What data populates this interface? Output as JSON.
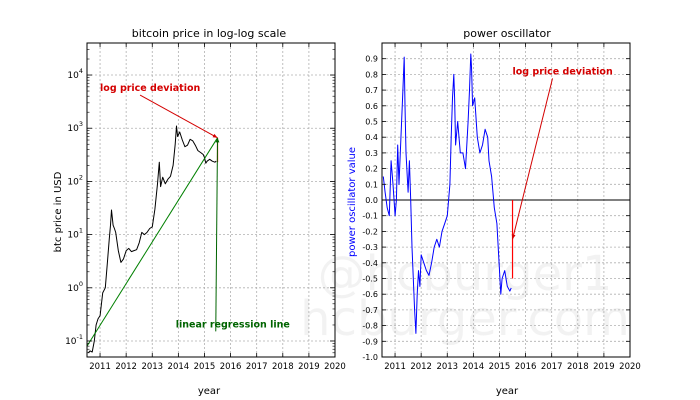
{
  "chart_data": [
    {
      "type": "line",
      "title": "bitcoin price in log-log scale",
      "xlabel": "year",
      "ylabel": "btc price in USD",
      "xlim": [
        2010.5,
        2020.0
      ],
      "yscale": "log",
      "ylim": [
        0.05,
        40000
      ],
      "grid": true,
      "x_ticks": [
        "2011",
        "2012",
        "2013",
        "2014",
        "2015",
        "2016",
        "2017",
        "2018",
        "2019",
        "2020"
      ],
      "y_ticks": [
        {
          "value": 0.1,
          "base": "10",
          "exp": "-1"
        },
        {
          "value": 1,
          "base": "10",
          "exp": "0"
        },
        {
          "value": 10,
          "base": "10",
          "exp": "1"
        },
        {
          "value": 100,
          "base": "10",
          "exp": "2"
        },
        {
          "value": 1000,
          "base": "10",
          "exp": "3"
        },
        {
          "value": 10000,
          "base": "10",
          "exp": "4"
        }
      ],
      "series": [
        {
          "color": "#000000",
          "points": [
            [
              2010.55,
              0.06
            ],
            [
              2010.62,
              0.065
            ],
            [
              2010.7,
              0.062
            ],
            [
              2010.78,
              0.1
            ],
            [
              2010.85,
              0.2
            ],
            [
              2010.92,
              0.26
            ],
            [
              2011.0,
              0.3
            ],
            [
              2011.1,
              0.8
            ],
            [
              2011.2,
              1.0
            ],
            [
              2011.28,
              3.0
            ],
            [
              2011.35,
              8.0
            ],
            [
              2011.4,
              15.0
            ],
            [
              2011.44,
              29.0
            ],
            [
              2011.5,
              15.0
            ],
            [
              2011.55,
              13.0
            ],
            [
              2011.6,
              11.0
            ],
            [
              2011.7,
              5.0
            ],
            [
              2011.8,
              3.0
            ],
            [
              2011.9,
              3.5
            ],
            [
              2012.0,
              5.0
            ],
            [
              2012.1,
              5.5
            ],
            [
              2012.2,
              4.8
            ],
            [
              2012.3,
              5.0
            ],
            [
              2012.4,
              5.2
            ],
            [
              2012.5,
              7.0
            ],
            [
              2012.6,
              11.0
            ],
            [
              2012.7,
              10.0
            ],
            [
              2012.8,
              11.0
            ],
            [
              2012.9,
              13.0
            ],
            [
              2013.0,
              14.0
            ],
            [
              2013.1,
              30.0
            ],
            [
              2013.2,
              90.0
            ],
            [
              2013.27,
              230.0
            ],
            [
              2013.32,
              80.0
            ],
            [
              2013.4,
              120.0
            ],
            [
              2013.5,
              90.0
            ],
            [
              2013.6,
              110.0
            ],
            [
              2013.7,
              125.0
            ],
            [
              2013.8,
              200.0
            ],
            [
              2013.88,
              500.0
            ],
            [
              2013.93,
              1100.0
            ],
            [
              2013.97,
              700.0
            ],
            [
              2014.05,
              850.0
            ],
            [
              2014.15,
              600.0
            ],
            [
              2014.25,
              450.0
            ],
            [
              2014.35,
              480.0
            ],
            [
              2014.45,
              620.0
            ],
            [
              2014.55,
              580.0
            ],
            [
              2014.65,
              480.0
            ],
            [
              2014.75,
              380.0
            ],
            [
              2014.85,
              350.0
            ],
            [
              2014.95,
              320.0
            ],
            [
              2015.0,
              280.0
            ],
            [
              2015.05,
              220.0
            ],
            [
              2015.1,
              240.0
            ],
            [
              2015.2,
              260.0
            ],
            [
              2015.3,
              240.0
            ],
            [
              2015.4,
              230.0
            ],
            [
              2015.45,
              240.0
            ]
          ]
        },
        {
          "color": "#008000",
          "points": [
            [
              2010.5,
              0.08
            ],
            [
              2015.5,
              660
            ]
          ]
        }
      ],
      "annotations": [
        {
          "text": "log price deviation",
          "color": "#d40000",
          "x": 2011.0,
          "y": 5000
        },
        {
          "text": "linear regression line",
          "color": "#006400",
          "x": 2013.9,
          "y": 0.18
        }
      ],
      "deviation": {
        "x": 2015.5,
        "y_from": 230,
        "y_to": 660,
        "color": "#ff0000"
      }
    },
    {
      "type": "line",
      "title": "power oscillator",
      "xlabel": "year",
      "ylabel": "power oscillator value",
      "ylabel_color": "#0000ff",
      "xlim": [
        2010.5,
        2020.0
      ],
      "ylim": [
        -1.0,
        1.0
      ],
      "grid": true,
      "x_ticks": [
        "2011",
        "2012",
        "2013",
        "2014",
        "2015",
        "2016",
        "2017",
        "2018",
        "2019",
        "2020"
      ],
      "y_ticks": [
        "-1.0",
        "-0.9",
        "-0.8",
        "-0.7",
        "-0.6",
        "-0.5",
        "-0.4",
        "-0.3",
        "-0.2",
        "-0.1",
        "0.0",
        "0.1",
        "0.2",
        "0.3",
        "0.4",
        "0.5",
        "0.6",
        "0.7",
        "0.8",
        "0.9"
      ],
      "zero_line": 0.0,
      "series": [
        {
          "color": "#0000ff",
          "points": [
            [
              2010.55,
              0.15
            ],
            [
              2010.62,
              0.05
            ],
            [
              2010.7,
              -0.05
            ],
            [
              2010.78,
              -0.1
            ],
            [
              2010.85,
              0.25
            ],
            [
              2010.92,
              0.1
            ],
            [
              2011.0,
              -0.1
            ],
            [
              2011.05,
              0.0
            ],
            [
              2011.1,
              0.35
            ],
            [
              2011.15,
              0.1
            ],
            [
              2011.2,
              0.3
            ],
            [
              2011.3,
              0.7
            ],
            [
              2011.35,
              0.91
            ],
            [
              2011.38,
              0.6
            ],
            [
              2011.42,
              0.3
            ],
            [
              2011.5,
              0.05
            ],
            [
              2011.55,
              0.25
            ],
            [
              2011.6,
              0.0
            ],
            [
              2011.65,
              -0.3
            ],
            [
              2011.7,
              -0.5
            ],
            [
              2011.75,
              -0.7
            ],
            [
              2011.8,
              -0.85
            ],
            [
              2011.85,
              -0.6
            ],
            [
              2011.9,
              -0.45
            ],
            [
              2011.95,
              -0.55
            ],
            [
              2012.0,
              -0.35
            ],
            [
              2012.1,
              -0.4
            ],
            [
              2012.2,
              -0.45
            ],
            [
              2012.3,
              -0.48
            ],
            [
              2012.4,
              -0.4
            ],
            [
              2012.5,
              -0.3
            ],
            [
              2012.6,
              -0.25
            ],
            [
              2012.7,
              -0.3
            ],
            [
              2012.8,
              -0.2
            ],
            [
              2012.9,
              -0.15
            ],
            [
              2013.0,
              -0.1
            ],
            [
              2013.1,
              0.1
            ],
            [
              2013.15,
              0.4
            ],
            [
              2013.2,
              0.65
            ],
            [
              2013.25,
              0.8
            ],
            [
              2013.28,
              0.65
            ],
            [
              2013.32,
              0.35
            ],
            [
              2013.4,
              0.5
            ],
            [
              2013.5,
              0.3
            ],
            [
              2013.6,
              0.3
            ],
            [
              2013.7,
              0.2
            ],
            [
              2013.8,
              0.5
            ],
            [
              2013.85,
              0.7
            ],
            [
              2013.9,
              0.93
            ],
            [
              2013.93,
              0.85
            ],
            [
              2013.97,
              0.6
            ],
            [
              2014.05,
              0.65
            ],
            [
              2014.15,
              0.4
            ],
            [
              2014.25,
              0.3
            ],
            [
              2014.35,
              0.35
            ],
            [
              2014.45,
              0.45
            ],
            [
              2014.55,
              0.4
            ],
            [
              2014.6,
              0.25
            ],
            [
              2014.7,
              0.15
            ],
            [
              2014.8,
              -0.05
            ],
            [
              2014.9,
              -0.15
            ],
            [
              2014.95,
              -0.3
            ],
            [
              2015.0,
              -0.45
            ],
            [
              2015.05,
              -0.6
            ],
            [
              2015.1,
              -0.5
            ],
            [
              2015.2,
              -0.45
            ],
            [
              2015.3,
              -0.55
            ],
            [
              2015.4,
              -0.58
            ],
            [
              2015.45,
              -0.56
            ]
          ]
        }
      ],
      "annotations": [
        {
          "text": "log price deviation",
          "color": "#d40000",
          "x": 2015.5,
          "y": 0.8
        }
      ],
      "deviation": {
        "x": 2015.5,
        "y_from": 0.0,
        "y_to": -0.5,
        "color": "#ff0000"
      }
    }
  ],
  "watermark": {
    "line1": "@hcburger1",
    "line2": "hcburger.com"
  }
}
